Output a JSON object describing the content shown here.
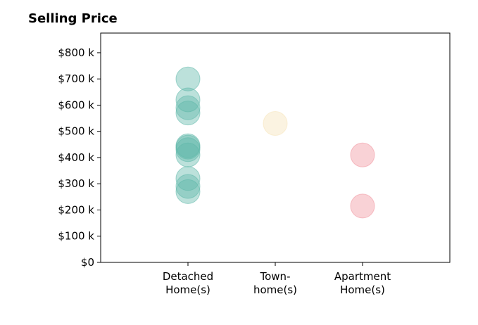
{
  "chart_data": {
    "type": "scatter",
    "title": "Selling Price",
    "xlabel": "",
    "ylabel": "",
    "categories": [
      [
        "Detached",
        "Home(s)"
      ],
      [
        "Town-",
        "home(s)"
      ],
      [
        "Apartment",
        "Home(s)"
      ]
    ],
    "yticks": [
      0,
      100,
      200,
      300,
      400,
      500,
      600,
      700,
      800
    ],
    "ytick_labels": [
      "$0",
      "$100 k",
      "$200 k",
      "$300 k",
      "$400 k",
      "$500 k",
      "$600 k",
      "$700 k",
      "$800 k"
    ],
    "ylim": [
      0,
      875
    ],
    "xlim": [
      -1,
      3
    ],
    "grid": false,
    "series": [
      {
        "category": 0,
        "color": "#5fb8aa",
        "values": [
          700,
          620,
          590,
          570,
          445,
          440,
          430,
          410,
          320,
          290,
          270
        ]
      },
      {
        "category": 1,
        "color": "#f6e3b8",
        "values": [
          530
        ]
      },
      {
        "category": 2,
        "color": "#f1949e",
        "values": [
          410,
          215
        ]
      }
    ]
  }
}
